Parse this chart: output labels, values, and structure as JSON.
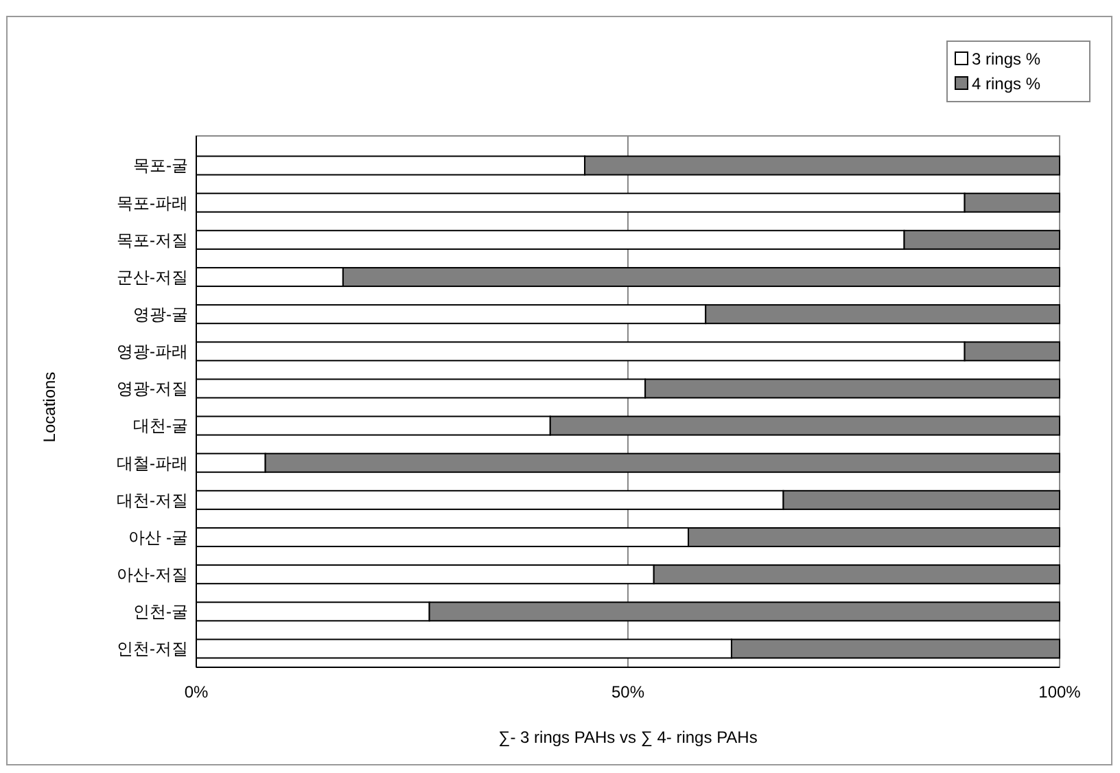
{
  "chart_data": {
    "type": "bar",
    "orientation": "horizontal",
    "stacked": true,
    "xlabel": "∑- 3 rings PAHs vs ∑ 4- rings PAHs",
    "ylabel": "Locations",
    "categories": [
      "목포-굴",
      "목포-파래",
      "목포-저질",
      "군산-저질",
      "영광-굴",
      "영광-파래",
      "영광-저질",
      "대천-굴",
      "대철-파래",
      "대천-저질",
      "아산 -굴",
      "아산-저질",
      "인천-굴",
      "인천-저질"
    ],
    "series": [
      {
        "name": "3 rings %",
        "color": "#ffffff",
        "values": [
          45,
          89,
          82,
          17,
          59,
          89,
          52,
          41,
          8,
          68,
          57,
          53,
          27,
          62
        ]
      },
      {
        "name": "4 rings %",
        "color": "#808080",
        "values": [
          55,
          11,
          18,
          83,
          41,
          11,
          48,
          59,
          92,
          32,
          43,
          47,
          73,
          38
        ]
      }
    ],
    "xlim": [
      0,
      100
    ],
    "xticks": [
      {
        "value": 0,
        "label": "0%"
      },
      {
        "value": 50,
        "label": "50%"
      },
      {
        "value": 100,
        "label": "100%"
      }
    ],
    "grid": "x",
    "legend": "top right"
  }
}
